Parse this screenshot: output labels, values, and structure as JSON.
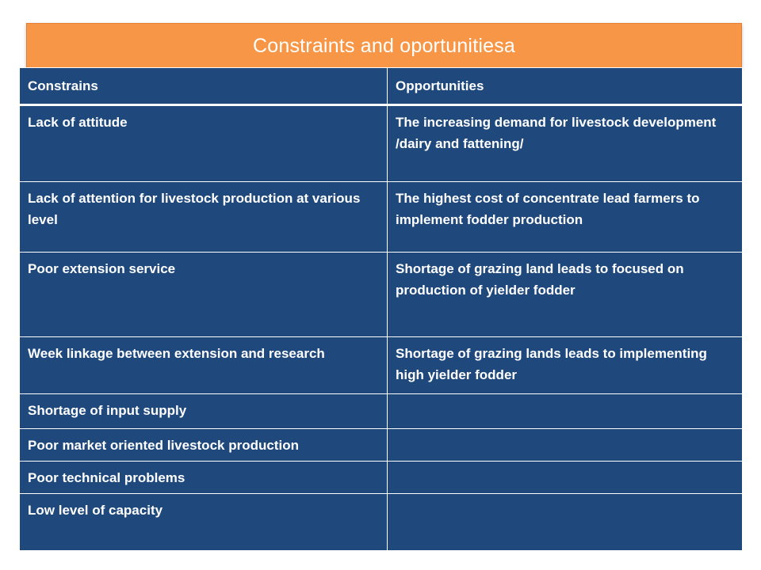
{
  "slide": {
    "title": "Constraints and oportunitiesa"
  },
  "table": {
    "headers": [
      "Constrains",
      "Opportunities"
    ],
    "rows": [
      [
        "Lack of attitude",
        "The increasing demand for livestock development /dairy and fattening/"
      ],
      [
        "Lack of attention for livestock production at various level",
        "The highest cost of concentrate lead farmers to implement fodder production"
      ],
      [
        "Poor extension service",
        "Shortage of grazing land leads to focused on production of yielder fodder"
      ],
      [
        "Week linkage between extension and research",
        "Shortage of grazing lands leads to implementing  high yielder fodder"
      ],
      [
        "Shortage of input supply",
        ""
      ],
      [
        "Poor market oriented  livestock production",
        ""
      ],
      [
        "Poor technical problems",
        ""
      ],
      [
        "Low level of capacity",
        ""
      ]
    ]
  },
  "colors": {
    "title_bar": "#f79646",
    "table_fill": "#1f497d",
    "text": "#ffffff"
  }
}
